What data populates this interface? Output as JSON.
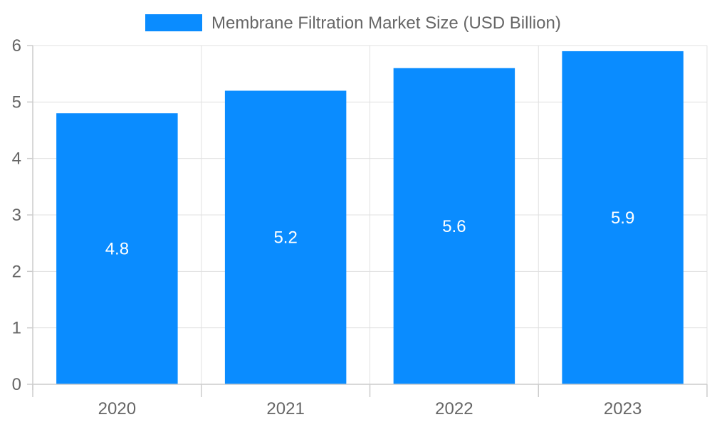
{
  "chart_data": {
    "type": "bar",
    "categories": [
      "2020",
      "2021",
      "2022",
      "2023"
    ],
    "series": [
      {
        "name": "Membrane Filtration Market Size (USD Billion)",
        "values": [
          4.8,
          5.2,
          5.6,
          5.9
        ],
        "color": "#0a8cff"
      }
    ],
    "title": "",
    "xlabel": "",
    "ylabel": "",
    "ylim": [
      0,
      6
    ],
    "yticks": [
      0,
      1,
      2,
      3,
      4,
      5,
      6
    ],
    "grid": true,
    "legend_position": "top-center",
    "data_labels": true
  }
}
